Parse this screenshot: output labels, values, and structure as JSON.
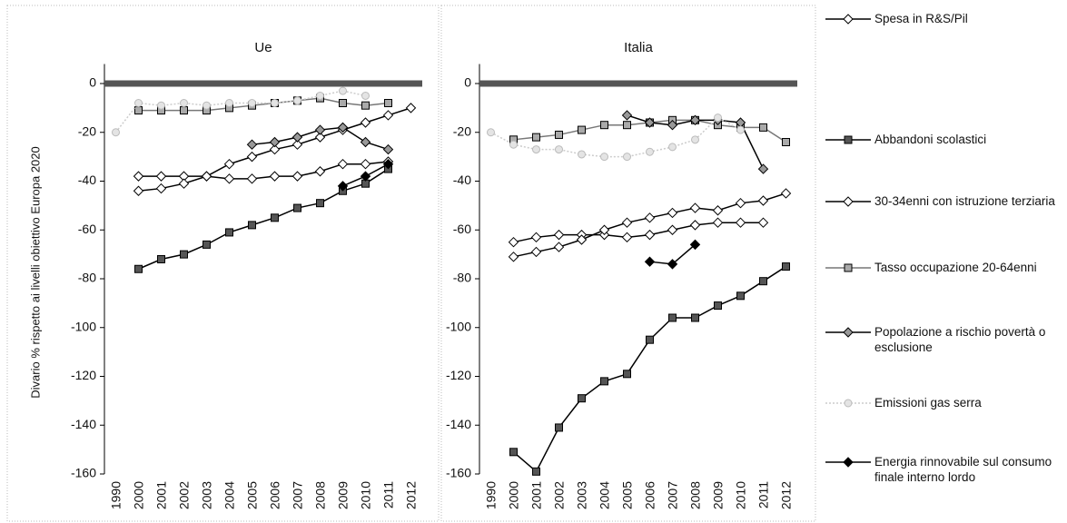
{
  "chart_data": {
    "type": "line",
    "panels": [
      {
        "title": "Ue"
      },
      {
        "title": "Italia"
      }
    ],
    "ylabel": "Divario % rispetto ai livelli obiettivo Europa 2020",
    "categories": [
      "1990",
      "2000",
      "2001",
      "2002",
      "2003",
      "2004",
      "2005",
      "2006",
      "2007",
      "2008",
      "2009",
      "2010",
      "2011",
      "2012"
    ],
    "ylim": [
      -160,
      8
    ],
    "yticks": [
      0,
      -20,
      -40,
      -60,
      -80,
      -100,
      -120,
      -140,
      -160
    ],
    "series": [
      {
        "name": "Spesa in R&S/Pil",
        "color": "#000000",
        "marker": "diamond",
        "marker_fill": "#ffffff",
        "values": [
          [
            null,
            -38,
            -38,
            -38,
            -38,
            -39,
            -39,
            -38,
            -38,
            -36,
            -33,
            -33,
            -32,
            null
          ],
          [
            null,
            -65,
            -63,
            -62,
            -62,
            -62,
            -63,
            -62,
            -60,
            -58,
            -57,
            -57,
            -57,
            null
          ]
        ]
      },
      {
        "name": "Abbandoni scolastici",
        "color": "#000000",
        "marker": "square",
        "marker_fill": "#555555",
        "values": [
          [
            null,
            -76,
            -72,
            -70,
            -66,
            -61,
            -58,
            -55,
            -51,
            -49,
            -44,
            -41,
            -35,
            null
          ],
          [
            null,
            -151,
            -159,
            -141,
            -129,
            -122,
            -119,
            -105,
            -96,
            -96,
            -91,
            -87,
            -81,
            -75
          ]
        ]
      },
      {
        "name": "30-34enni con istruzione terziaria",
        "color": "#000000",
        "marker": "diamond",
        "marker_fill": "#ffffff",
        "values": [
          [
            null,
            -44,
            -43,
            -41,
            -38,
            -33,
            -30,
            -27,
            -25,
            -22,
            -19,
            -16,
            -13,
            -10
          ],
          [
            null,
            -71,
            -69,
            -67,
            -64,
            -60,
            -57,
            -55,
            -53,
            -51,
            -52,
            -49,
            -48,
            -45
          ]
        ]
      },
      {
        "name": "Tasso occupazione 20-64enni",
        "color": "#777777",
        "marker": "square",
        "marker_fill": "#aaaaaa",
        "values": [
          [
            null,
            -11,
            -11,
            -11,
            -11,
            -10,
            -9,
            -8,
            -7,
            -6,
            -8,
            -9,
            -8,
            null
          ],
          [
            null,
            -23,
            -22,
            -21,
            -19,
            -17,
            -17,
            -16,
            -15,
            -15,
            -17,
            -18,
            -18,
            -24
          ]
        ]
      },
      {
        "name": "Popolazione a rischio povertà o esclusione",
        "color": "#000000",
        "marker": "diamond",
        "marker_fill": "#999999",
        "values": [
          [
            null,
            null,
            null,
            null,
            null,
            null,
            -25,
            -24,
            -22,
            -19,
            -18,
            -24,
            -27,
            null
          ],
          [
            null,
            null,
            null,
            null,
            null,
            null,
            -13,
            -16,
            -17,
            -15,
            -15,
            -16,
            -35,
            null
          ]
        ]
      },
      {
        "name": "Emissioni gas serra",
        "color": "#cccccc",
        "marker": "circle",
        "marker_fill": "#e4e4e4",
        "dashed": true,
        "values": [
          [
            -20,
            -8,
            -9,
            -8,
            -9,
            -8,
            -8,
            -8,
            -7,
            -5,
            -3,
            -5,
            null,
            null
          ],
          [
            -20,
            -25,
            -27,
            -27,
            -29,
            -30,
            -30,
            -28,
            -26,
            -23,
            -14,
            -19,
            null,
            null
          ]
        ]
      },
      {
        "name": "Energia rinnovabile sul consumo finale interno lordo",
        "color": "#000000",
        "marker": "diamond",
        "marker_fill": "#000000",
        "values": [
          [
            null,
            null,
            null,
            null,
            null,
            null,
            null,
            null,
            null,
            null,
            -42,
            -38,
            -33,
            null
          ],
          [
            null,
            null,
            null,
            null,
            null,
            null,
            null,
            -73,
            -74,
            -66,
            null,
            null,
            null,
            null
          ]
        ]
      }
    ]
  }
}
